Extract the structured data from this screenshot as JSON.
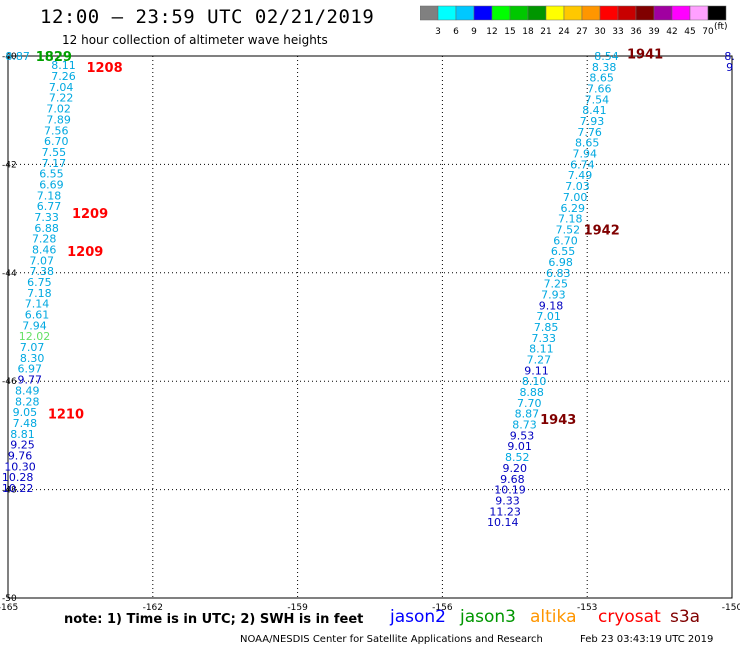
{
  "header": {
    "title": "12:00 – 23:59 UTC 02/21/2019",
    "subtitle": "12 hour collection of altimeter wave heights"
  },
  "legend": {
    "unit": "(ft)",
    "bins": [
      {
        "color": "#808080",
        "label": "3"
      },
      {
        "color": "#00ffff",
        "label": "6"
      },
      {
        "color": "#00c8ff",
        "label": "9"
      },
      {
        "color": "#0000ff",
        "label": "12"
      },
      {
        "color": "#00ff00",
        "label": "15"
      },
      {
        "color": "#00c800",
        "label": "18"
      },
      {
        "color": "#009600",
        "label": "21"
      },
      {
        "color": "#ffff00",
        "label": "24"
      },
      {
        "color": "#ffc800",
        "label": "27"
      },
      {
        "color": "#ff9600",
        "label": "30"
      },
      {
        "color": "#ff0000",
        "label": "33"
      },
      {
        "color": "#c80000",
        "label": "36"
      },
      {
        "color": "#800000",
        "label": "39"
      },
      {
        "color": "#a000a0",
        "label": "42"
      },
      {
        "color": "#ff00ff",
        "label": "45"
      },
      {
        "color": "#ffa0ff",
        "label": "70"
      },
      {
        "color": "#000000",
        "label": ""
      }
    ]
  },
  "footer": {
    "note": "note:  1) Time is in UTC;  2) SWH is in feet",
    "satellites": [
      {
        "name": "jason2",
        "color": "#0000ff"
      },
      {
        "name": "jason3",
        "color": "#009600"
      },
      {
        "name": "altika",
        "color": "#ff9600"
      },
      {
        "name": "cryosat",
        "color": "#ff0000"
      },
      {
        "name": "s3a",
        "color": "#800000"
      }
    ],
    "credit": "NOAA/NESDIS Center for Satellite Applications and Research",
    "timestamp": "Feb 23 03:43:19 UTC 2019"
  },
  "chart_data": {
    "type": "scatter",
    "xlim": [
      -165,
      -150
    ],
    "ylim": [
      -50,
      -40
    ],
    "x_ticks": [
      "-165",
      "-162",
      "-159",
      "-156",
      "-153",
      "-150"
    ],
    "y_ticks": [
      "-40",
      "-42",
      "-44",
      "-46",
      "-48",
      "-50"
    ],
    "grid": true,
    "colors": {
      "cyan": "#00a8e0",
      "blue": "#0000c0",
      "green": "#00a000",
      "lightgreen": "#66e066",
      "red": "#ff0000",
      "maroon": "#800000"
    },
    "time_labels": [
      {
        "x": -164.05,
        "y": -40.0,
        "text": "1829",
        "color": "green"
      },
      {
        "x": -163.0,
        "y": -40.2,
        "text": "1208",
        "color": "red"
      },
      {
        "x": -163.3,
        "y": -42.9,
        "text": "1209",
        "color": "red"
      },
      {
        "x": -163.4,
        "y": -43.6,
        "text": "1209",
        "color": "red"
      },
      {
        "x": -163.8,
        "y": -46.6,
        "text": "1210",
        "color": "red"
      },
      {
        "x": -151.8,
        "y": -39.95,
        "text": "1941",
        "color": "maroon"
      },
      {
        "x": -152.7,
        "y": -43.2,
        "text": "1942",
        "color": "maroon"
      },
      {
        "x": -153.6,
        "y": -46.7,
        "text": "1943",
        "color": "maroon"
      }
    ],
    "series": [
      {
        "name": "track-west",
        "points": [
          {
            "x": -164.8,
            "y": -40.0,
            "v": "8.87",
            "color": "cyan"
          },
          {
            "x": -163.85,
            "y": -40.17,
            "v": "8.11",
            "color": "cyan"
          },
          {
            "x": -163.85,
            "y": -40.37,
            "v": "7.26",
            "color": "cyan"
          },
          {
            "x": -163.9,
            "y": -40.57,
            "v": "7.04",
            "color": "cyan"
          },
          {
            "x": -163.9,
            "y": -40.77,
            "v": "7.22",
            "color": "cyan"
          },
          {
            "x": -163.95,
            "y": -40.97,
            "v": "7.02",
            "color": "cyan"
          },
          {
            "x": -163.95,
            "y": -41.17,
            "v": "7.89",
            "color": "cyan"
          },
          {
            "x": -164.0,
            "y": -41.37,
            "v": "7.56",
            "color": "cyan"
          },
          {
            "x": -164.0,
            "y": -41.57,
            "v": "6.70",
            "color": "cyan"
          },
          {
            "x": -164.05,
            "y": -41.77,
            "v": "7.55",
            "color": "cyan"
          },
          {
            "x": -164.05,
            "y": -41.97,
            "v": "7.17",
            "color": "cyan"
          },
          {
            "x": -164.1,
            "y": -42.17,
            "v": "6.55",
            "color": "cyan"
          },
          {
            "x": -164.1,
            "y": -42.37,
            "v": "6.69",
            "color": "cyan"
          },
          {
            "x": -164.15,
            "y": -42.57,
            "v": "7.18",
            "color": "cyan"
          },
          {
            "x": -164.15,
            "y": -42.77,
            "v": "6.77",
            "color": "cyan"
          },
          {
            "x": -164.2,
            "y": -42.97,
            "v": "7.33",
            "color": "cyan"
          },
          {
            "x": -164.2,
            "y": -43.17,
            "v": "6.88",
            "color": "cyan"
          },
          {
            "x": -164.25,
            "y": -43.37,
            "v": "7.28",
            "color": "cyan"
          },
          {
            "x": -164.25,
            "y": -43.57,
            "v": "8.46",
            "color": "cyan"
          },
          {
            "x": -164.3,
            "y": -43.77,
            "v": "7.07",
            "color": "cyan"
          },
          {
            "x": -164.3,
            "y": -43.97,
            "v": "7.38",
            "color": "cyan"
          },
          {
            "x": -164.35,
            "y": -44.17,
            "v": "6.75",
            "color": "cyan"
          },
          {
            "x": -164.35,
            "y": -44.37,
            "v": "7.18",
            "color": "cyan"
          },
          {
            "x": -164.4,
            "y": -44.57,
            "v": "7.14",
            "color": "cyan"
          },
          {
            "x": -164.4,
            "y": -44.77,
            "v": "6.61",
            "color": "cyan"
          },
          {
            "x": -164.45,
            "y": -44.97,
            "v": "7.94",
            "color": "cyan"
          },
          {
            "x": -164.45,
            "y": -45.17,
            "v": "12.02",
            "color": "lightgreen"
          },
          {
            "x": -164.5,
            "y": -45.37,
            "v": "7.07",
            "color": "cyan"
          },
          {
            "x": -164.5,
            "y": -45.57,
            "v": "8.30",
            "color": "cyan"
          },
          {
            "x": -164.55,
            "y": -45.77,
            "v": "6.97",
            "color": "cyan"
          },
          {
            "x": -164.55,
            "y": -45.97,
            "v": "9.77",
            "color": "blue"
          },
          {
            "x": -164.6,
            "y": -46.17,
            "v": "8.49",
            "color": "cyan"
          },
          {
            "x": -164.6,
            "y": -46.37,
            "v": "8.28",
            "color": "cyan"
          },
          {
            "x": -164.65,
            "y": -46.57,
            "v": "9.05",
            "color": "cyan"
          },
          {
            "x": -164.65,
            "y": -46.77,
            "v": "7.48",
            "color": "cyan"
          },
          {
            "x": -164.7,
            "y": -46.97,
            "v": "8.81",
            "color": "cyan"
          },
          {
            "x": -164.7,
            "y": -47.17,
            "v": "9.25",
            "color": "blue"
          },
          {
            "x": -164.75,
            "y": -47.37,
            "v": "9.76",
            "color": "blue"
          },
          {
            "x": -164.75,
            "y": -47.57,
            "v": "10.30",
            "color": "blue"
          },
          {
            "x": -164.8,
            "y": -47.77,
            "v": "10.28",
            "color": "blue"
          },
          {
            "x": -164.8,
            "y": -47.97,
            "v": "10.22",
            "color": "blue"
          }
        ]
      },
      {
        "name": "track-east",
        "points": [
          {
            "x": -152.6,
            "y": -40.0,
            "v": "8.54",
            "color": "cyan"
          },
          {
            "x": -152.65,
            "y": -40.2,
            "v": "8.38",
            "color": "cyan"
          },
          {
            "x": -152.7,
            "y": -40.4,
            "v": "8.65",
            "color": "cyan"
          },
          {
            "x": -152.75,
            "y": -40.6,
            "v": "7.66",
            "color": "cyan"
          },
          {
            "x": -152.8,
            "y": -40.8,
            "v": "7.54",
            "color": "cyan"
          },
          {
            "x": -152.85,
            "y": -41.0,
            "v": "8.41",
            "color": "cyan"
          },
          {
            "x": -152.9,
            "y": -41.2,
            "v": "7.93",
            "color": "cyan"
          },
          {
            "x": -152.95,
            "y": -41.4,
            "v": "7.76",
            "color": "cyan"
          },
          {
            "x": -153.0,
            "y": -41.6,
            "v": "8.65",
            "color": "cyan"
          },
          {
            "x": -153.05,
            "y": -41.8,
            "v": "7.94",
            "color": "cyan"
          },
          {
            "x": -153.1,
            "y": -42.0,
            "v": "6.74",
            "color": "cyan"
          },
          {
            "x": -153.15,
            "y": -42.2,
            "v": "7.49",
            "color": "cyan"
          },
          {
            "x": -153.2,
            "y": -42.4,
            "v": "7.03",
            "color": "cyan"
          },
          {
            "x": -153.25,
            "y": -42.6,
            "v": "7.00",
            "color": "cyan"
          },
          {
            "x": -153.3,
            "y": -42.8,
            "v": "6.29",
            "color": "cyan"
          },
          {
            "x": -153.35,
            "y": -43.0,
            "v": "7.18",
            "color": "cyan"
          },
          {
            "x": -153.4,
            "y": -43.2,
            "v": "7.52",
            "color": "cyan"
          },
          {
            "x": -153.45,
            "y": -43.4,
            "v": "6.70",
            "color": "cyan"
          },
          {
            "x": -153.5,
            "y": -43.6,
            "v": "6.55",
            "color": "cyan"
          },
          {
            "x": -153.55,
            "y": -43.8,
            "v": "6.98",
            "color": "cyan"
          },
          {
            "x": -153.6,
            "y": -44.0,
            "v": "6.83",
            "color": "cyan"
          },
          {
            "x": -153.65,
            "y": -44.2,
            "v": "7.25",
            "color": "cyan"
          },
          {
            "x": -153.7,
            "y": -44.4,
            "v": "7.93",
            "color": "cyan"
          },
          {
            "x": -153.75,
            "y": -44.6,
            "v": "9.18",
            "color": "blue"
          },
          {
            "x": -153.8,
            "y": -44.8,
            "v": "7.01",
            "color": "cyan"
          },
          {
            "x": -153.85,
            "y": -45.0,
            "v": "7.85",
            "color": "cyan"
          },
          {
            "x": -153.9,
            "y": -45.2,
            "v": "7.33",
            "color": "cyan"
          },
          {
            "x": -153.95,
            "y": -45.4,
            "v": "8.11",
            "color": "cyan"
          },
          {
            "x": -154.0,
            "y": -45.6,
            "v": "7.27",
            "color": "cyan"
          },
          {
            "x": -154.05,
            "y": -45.8,
            "v": "9.11",
            "color": "blue"
          },
          {
            "x": -154.1,
            "y": -46.0,
            "v": "8.10",
            "color": "cyan"
          },
          {
            "x": -154.15,
            "y": -46.2,
            "v": "8.88",
            "color": "cyan"
          },
          {
            "x": -154.2,
            "y": -46.4,
            "v": "7.70",
            "color": "cyan"
          },
          {
            "x": -154.25,
            "y": -46.6,
            "v": "8.87",
            "color": "cyan"
          },
          {
            "x": -154.3,
            "y": -46.8,
            "v": "8.73",
            "color": "cyan"
          },
          {
            "x": -154.35,
            "y": -47.0,
            "v": "9.53",
            "color": "blue"
          },
          {
            "x": -154.4,
            "y": -47.2,
            "v": "9.01",
            "color": "blue"
          },
          {
            "x": -154.45,
            "y": -47.4,
            "v": "8.52",
            "color": "cyan"
          },
          {
            "x": -154.5,
            "y": -47.6,
            "v": "9.20",
            "color": "blue"
          },
          {
            "x": -154.55,
            "y": -47.8,
            "v": "9.68",
            "color": "blue"
          },
          {
            "x": -154.6,
            "y": -48.0,
            "v": "10.19",
            "color": "blue"
          },
          {
            "x": -154.65,
            "y": -48.2,
            "v": "9.33",
            "color": "blue"
          },
          {
            "x": -154.7,
            "y": -48.4,
            "v": "11.23",
            "color": "blue"
          },
          {
            "x": -154.75,
            "y": -48.6,
            "v": "10.14",
            "color": "blue"
          }
        ]
      },
      {
        "name": "track-edge",
        "points": [
          {
            "x": -150.05,
            "y": -40.0,
            "v": "8.",
            "color": "blue"
          },
          {
            "x": -150.05,
            "y": -40.2,
            "v": "9",
            "color": "blue"
          }
        ]
      }
    ]
  }
}
